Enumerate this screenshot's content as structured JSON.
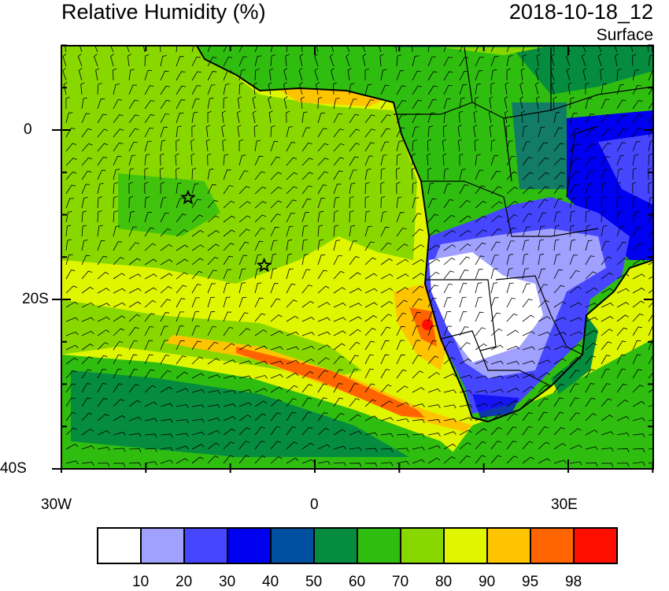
{
  "header": {
    "title": "Relative Humidity (%)",
    "date": "2018-10-18_12",
    "level": "Surface"
  },
  "axes": {
    "y_ticks": [
      "0",
      "20S",
      "40S"
    ],
    "x_ticks": [
      "30W",
      "0",
      "30E"
    ]
  },
  "colorbar": {
    "colors": [
      "#ffffff",
      "#a0a0ff",
      "#4646ff",
      "#0000f0",
      "#0050a0",
      "#068c3f",
      "#2fbe10",
      "#88d800",
      "#e0f500",
      "#ffc400",
      "#ff6400",
      "#ff0e00"
    ],
    "labels": [
      "10",
      "20",
      "30",
      "40",
      "50",
      "60",
      "70",
      "80",
      "90",
      "95",
      "98"
    ]
  },
  "markers": [
    {
      "name": "star",
      "lon": -15,
      "lat": -8
    },
    {
      "name": "star",
      "lon": -6,
      "lat": -16
    }
  ]
}
